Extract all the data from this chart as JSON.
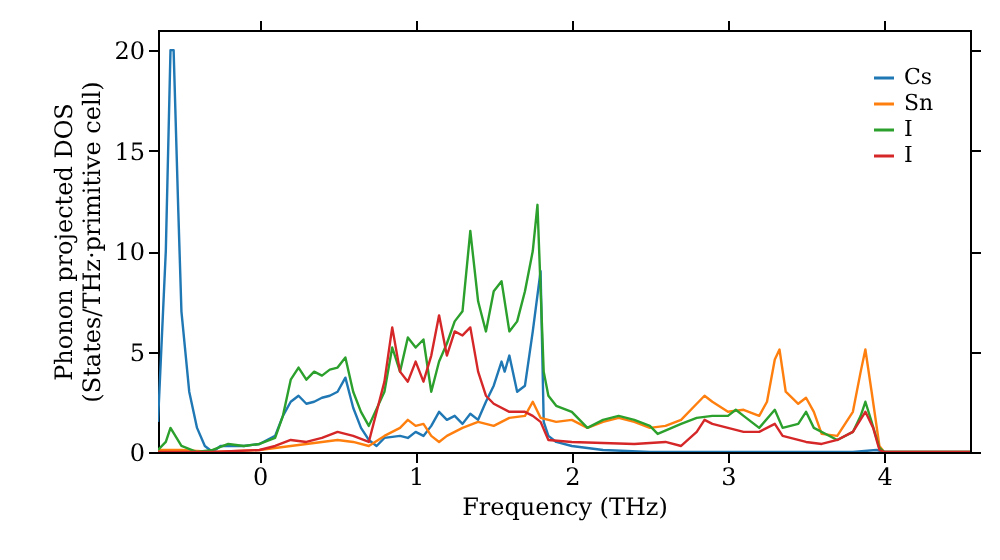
{
  "chart_data": {
    "type": "line",
    "xlabel": "Frequency (THz)",
    "ylabel": "Phonon projected DOS\n(States/THz·primitive cell)",
    "xlim": [
      -0.65,
      4.55
    ],
    "ylim": [
      0,
      21
    ],
    "xticks": [
      0,
      1,
      2,
      3,
      4
    ],
    "yticks": [
      0,
      5,
      10,
      15,
      20
    ],
    "grid": false,
    "legend": "top right",
    "marker": "none",
    "line_style": "solid",
    "series": [
      {
        "name": "Cs",
        "color": "#1f77b4",
        "x": [
          -0.65,
          -0.6,
          -0.57,
          -0.55,
          -0.52,
          -0.5,
          -0.45,
          -0.4,
          -0.35,
          -0.3,
          -0.25,
          -0.2,
          -0.1,
          0,
          0.1,
          0.15,
          0.2,
          0.25,
          0.3,
          0.35,
          0.4,
          0.45,
          0.5,
          0.55,
          0.6,
          0.65,
          0.7,
          0.75,
          0.8,
          0.9,
          0.95,
          1.0,
          1.05,
          1.1,
          1.15,
          1.2,
          1.25,
          1.3,
          1.35,
          1.4,
          1.45,
          1.5,
          1.55,
          1.57,
          1.6,
          1.65,
          1.7,
          1.75,
          1.8,
          1.82,
          1.85,
          1.9,
          2.0,
          2.2,
          2.5,
          3.0,
          3.8,
          3.95,
          4.0,
          4.55
        ],
        "values": [
          1.5,
          10,
          20,
          20,
          12,
          7,
          3,
          1.2,
          0.3,
          0,
          0.3,
          0.3,
          0.3,
          0.4,
          0.8,
          1.8,
          2.5,
          2.8,
          2.4,
          2.5,
          2.7,
          2.8,
          3.0,
          3.7,
          2.2,
          1.2,
          0.6,
          0.3,
          0.7,
          0.8,
          0.7,
          1.0,
          0.8,
          1.3,
          2.0,
          1.6,
          1.8,
          1.4,
          1.9,
          1.6,
          2.5,
          3.3,
          4.5,
          4.0,
          4.8,
          3.0,
          3.3,
          6.0,
          9.0,
          1.5,
          0.8,
          0.5,
          0.3,
          0.1,
          0,
          0,
          0,
          0.1,
          0,
          0
        ]
      },
      {
        "name": "Sn",
        "color": "#ff7f0e",
        "x": [
          -0.65,
          -0.5,
          -0.3,
          0,
          0.1,
          0.2,
          0.4,
          0.5,
          0.6,
          0.7,
          0.8,
          0.9,
          0.95,
          1.0,
          1.05,
          1.1,
          1.15,
          1.2,
          1.3,
          1.4,
          1.5,
          1.6,
          1.7,
          1.75,
          1.8,
          1.9,
          2.0,
          2.1,
          2.2,
          2.3,
          2.4,
          2.5,
          2.6,
          2.7,
          2.8,
          2.85,
          2.9,
          3.0,
          3.1,
          3.2,
          3.25,
          3.3,
          3.33,
          3.37,
          3.45,
          3.5,
          3.55,
          3.6,
          3.7,
          3.8,
          3.85,
          3.88,
          3.92,
          3.97,
          4.0,
          4.55
        ],
        "values": [
          0.1,
          0.1,
          0,
          0.1,
          0.2,
          0.3,
          0.5,
          0.6,
          0.5,
          0.3,
          0.8,
          1.2,
          1.6,
          1.3,
          1.4,
          0.8,
          0.5,
          0.8,
          1.2,
          1.5,
          1.3,
          1.7,
          1.8,
          2.5,
          1.7,
          1.5,
          1.6,
          1.2,
          1.5,
          1.7,
          1.5,
          1.2,
          1.3,
          1.6,
          2.4,
          2.8,
          2.5,
          2.0,
          2.1,
          1.8,
          2.5,
          4.6,
          5.1,
          3.0,
          2.4,
          2.7,
          2.0,
          0.9,
          0.8,
          2.0,
          4.0,
          5.1,
          3.0,
          0.3,
          0,
          0
        ]
      },
      {
        "name": "I",
        "color": "#2ca02c",
        "x": [
          -0.65,
          -0.6,
          -0.57,
          -0.5,
          -0.4,
          -0.3,
          -0.2,
          -0.1,
          0,
          0.1,
          0.15,
          0.2,
          0.25,
          0.3,
          0.35,
          0.4,
          0.45,
          0.5,
          0.55,
          0.6,
          0.65,
          0.7,
          0.8,
          0.85,
          0.9,
          0.95,
          1.0,
          1.05,
          1.1,
          1.15,
          1.2,
          1.25,
          1.3,
          1.35,
          1.4,
          1.45,
          1.5,
          1.55,
          1.6,
          1.65,
          1.7,
          1.75,
          1.78,
          1.82,
          1.85,
          1.9,
          2.0,
          2.1,
          2.2,
          2.3,
          2.4,
          2.5,
          2.55,
          2.7,
          2.8,
          2.9,
          3.0,
          3.05,
          3.1,
          3.2,
          3.3,
          3.35,
          3.45,
          3.5,
          3.55,
          3.7,
          3.8,
          3.85,
          3.88,
          3.92,
          3.97,
          4.0,
          4.55
        ],
        "values": [
          0.1,
          0.5,
          1.2,
          0.3,
          0,
          0.1,
          0.4,
          0.3,
          0.4,
          0.7,
          1.8,
          3.6,
          4.2,
          3.6,
          4.0,
          3.8,
          4.1,
          4.2,
          4.7,
          3.0,
          2.0,
          1.3,
          3.0,
          5.2,
          4.0,
          5.7,
          5.2,
          5.6,
          3.0,
          4.5,
          5.4,
          6.5,
          7.0,
          11.0,
          7.5,
          6.0,
          8.0,
          8.5,
          6.0,
          6.5,
          8.0,
          10.0,
          12.3,
          4.0,
          2.8,
          2.3,
          2.0,
          1.2,
          1.6,
          1.8,
          1.6,
          1.3,
          0.9,
          1.4,
          1.7,
          1.8,
          1.8,
          2.1,
          1.8,
          1.2,
          2.1,
          1.2,
          1.4,
          2.0,
          1.2,
          0.6,
          1.0,
          1.8,
          2.5,
          1.5,
          0.2,
          0,
          0
        ]
      },
      {
        "name": "I",
        "color": "#d62728",
        "x": [
          -0.65,
          -0.3,
          0,
          0.1,
          0.2,
          0.3,
          0.4,
          0.5,
          0.6,
          0.7,
          0.8,
          0.85,
          0.9,
          0.95,
          1.0,
          1.05,
          1.1,
          1.15,
          1.2,
          1.25,
          1.3,
          1.35,
          1.4,
          1.45,
          1.5,
          1.6,
          1.7,
          1.75,
          1.8,
          1.85,
          2.0,
          2.4,
          2.6,
          2.7,
          2.8,
          2.85,
          2.9,
          3.0,
          3.1,
          3.2,
          3.3,
          3.35,
          3.45,
          3.5,
          3.6,
          3.7,
          3.8,
          3.88,
          3.93,
          3.97,
          4.0,
          4.55
        ],
        "values": [
          0,
          0,
          0.1,
          0.3,
          0.6,
          0.5,
          0.7,
          1.0,
          0.8,
          0.5,
          3.5,
          6.2,
          4.0,
          3.5,
          4.5,
          3.5,
          4.8,
          6.8,
          4.8,
          6.0,
          5.8,
          6.2,
          4.0,
          2.8,
          2.4,
          2.0,
          2.0,
          1.8,
          1.5,
          0.6,
          0.5,
          0.4,
          0.5,
          0.3,
          1.0,
          1.6,
          1.4,
          1.2,
          1.0,
          1.0,
          1.4,
          0.8,
          0.6,
          0.5,
          0.4,
          0.6,
          1.0,
          2.0,
          1.2,
          0.1,
          0,
          0
        ]
      }
    ]
  }
}
